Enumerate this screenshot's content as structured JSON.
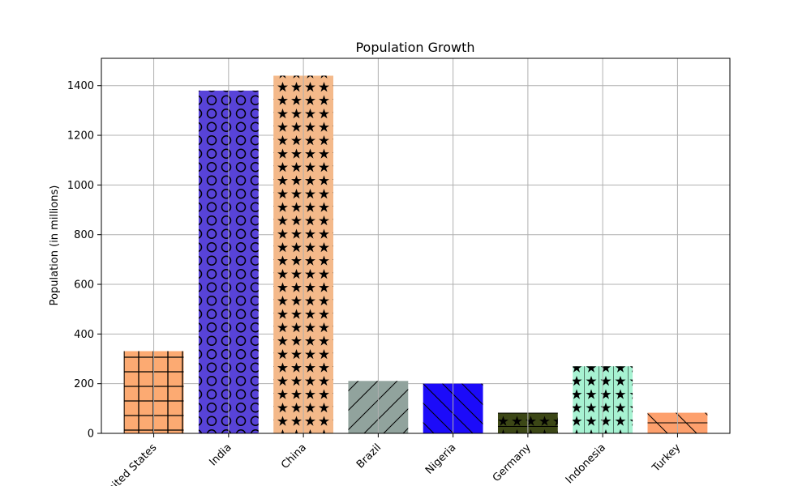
{
  "chart_data": {
    "type": "bar",
    "title": "Population Growth",
    "xlabel": "",
    "ylabel": "Population (in millions)",
    "categories": [
      "United States",
      "India",
      "China",
      "Brazil",
      "Nigeria",
      "Germany",
      "Indonesia",
      "Turkey"
    ],
    "values": [
      331,
      1380,
      1440,
      211,
      200,
      83,
      270,
      83
    ],
    "ylim": [
      0,
      1510
    ],
    "yticks": [
      0,
      200,
      400,
      600,
      800,
      1000,
      1200,
      1400
    ],
    "grid": true,
    "bar_colors": [
      "#fcaa72",
      "#5843d8",
      "#f4b98a",
      "#91a39d",
      "#1c0bf9",
      "#3c4716",
      "#a7f2d2",
      "#fda06d"
    ],
    "hatches": [
      "grid",
      "circles",
      "stars",
      "slash",
      "backslash",
      "stars-hline",
      "stars-vline",
      "backslash-hline"
    ]
  }
}
